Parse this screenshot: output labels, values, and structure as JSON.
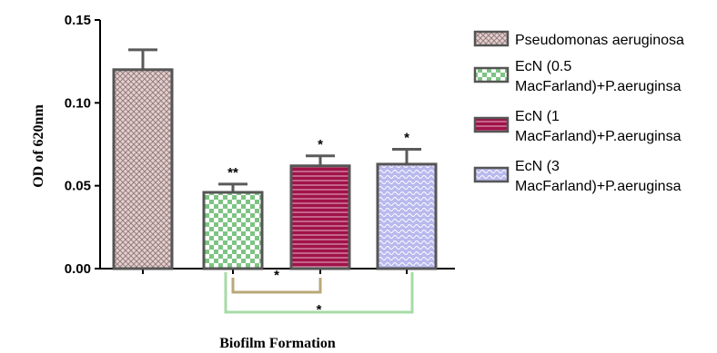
{
  "chart_data": {
    "type": "bar",
    "title": "",
    "xlabel": "Biofilm Formation",
    "ylabel": "OD of 620nm",
    "ylim": [
      0,
      0.15
    ],
    "yticks": [
      "0.00",
      "0.05",
      "0.10",
      "0.15"
    ],
    "series": [
      {
        "name": "Pseudomonas aeruginosa",
        "legend": [
          "Pseudomonas aeruginosa"
        ],
        "value": 0.12,
        "error": 0.012,
        "annotation": "",
        "color": "#cbb4b4",
        "pattern": "crosshatch"
      },
      {
        "name": "EcN (0.5 MacFarland)+P.aeruginsa",
        "legend": [
          "EcN (0.5",
          "MacFarland)+P.aeruginsa"
        ],
        "value": 0.046,
        "error": 0.005,
        "annotation": "**",
        "color": "#9fd6a3",
        "pattern": "checker"
      },
      {
        "name": "EcN (1 MacFarland)+P.aeruginsa",
        "legend": [
          "EcN (1",
          "MacFarland)+P.aeruginsa"
        ],
        "value": 0.062,
        "error": 0.006,
        "annotation": "*",
        "color": "#a0124a",
        "pattern": "horizontal-lines"
      },
      {
        "name": "EcN (3 MacFarland)+P.aeruginsa",
        "legend": [
          "EcN (3",
          "MacFarland)+P.aeruginsa"
        ],
        "value": 0.063,
        "error": 0.009,
        "annotation": "*",
        "color": "#b3b3ea",
        "pattern": "waves"
      }
    ],
    "comparisons": [
      {
        "from": 1,
        "to": 2,
        "label": "*",
        "color": "#b9a978"
      },
      {
        "from": 1,
        "to": 3,
        "label": "*",
        "color": "#a6dba6"
      }
    ],
    "legend_position": "right",
    "grid": false
  }
}
